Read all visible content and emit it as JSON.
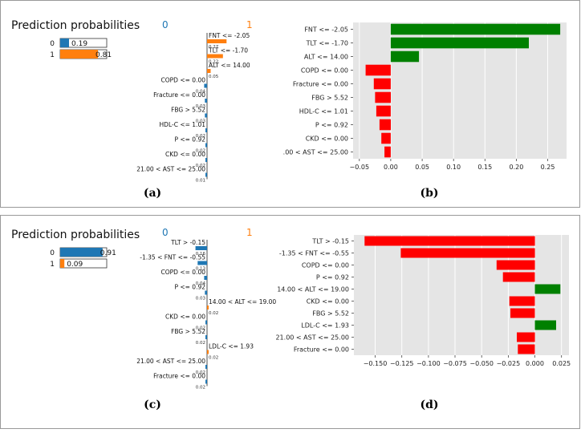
{
  "colors": {
    "blue": "#1f77b4",
    "orange": "#ff7f0e",
    "green": "#008000",
    "red": "#ff0000",
    "plot_bg": "#e5e5e5",
    "grid": "#ffffff"
  },
  "panel_labels": [
    "(a)",
    "(b)",
    "(c)",
    "(d)"
  ],
  "chart_data": [
    {
      "panel": "a",
      "type": "bar",
      "title": "Prediction probabilities",
      "class_labels": [
        "0",
        "1"
      ],
      "values": [
        0.19,
        0.81
      ],
      "value_labels": [
        "0.19",
        "0.81"
      ]
    },
    {
      "panel": "a",
      "type": "bar",
      "orientation": "horizontal",
      "header_left": "0",
      "header_right": "1",
      "features": [
        {
          "label": "FNT <= -2.05",
          "weight": 0.27,
          "weight_label": "0.27",
          "side": "1"
        },
        {
          "label": "TLT <= -1.70",
          "weight": 0.22,
          "weight_label": "0.22",
          "side": "1"
        },
        {
          "label": "ALT <= 14.00",
          "weight": 0.05,
          "weight_label": "0.05",
          "side": "1"
        },
        {
          "label": "COPD <= 0.00",
          "weight": 0.04,
          "weight_label": "0.04",
          "side": "0"
        },
        {
          "label": "Fracture <= 0.00",
          "weight": 0.03,
          "weight_label": "0.03",
          "side": "0"
        },
        {
          "label": "FBG > 5.52",
          "weight": 0.03,
          "weight_label": "0.03",
          "side": "0"
        },
        {
          "label": "HDL-C <= 1.01",
          "weight": 0.02,
          "weight_label": "0.02",
          "side": "0"
        },
        {
          "label": "P <= 0.92",
          "weight": 0.02,
          "weight_label": "0.02",
          "side": "0"
        },
        {
          "label": "CKD <= 0.00",
          "weight": 0.02,
          "weight_label": "0.02",
          "side": "0"
        },
        {
          "label": "21.00 < AST <= 25.00",
          "weight": 0.01,
          "weight_label": "0.01",
          "side": "0"
        }
      ]
    },
    {
      "panel": "b",
      "type": "bar",
      "orientation": "horizontal",
      "categories": [
        "FNT <= -2.05",
        "TLT <= -1.70",
        "ALT <= 14.00",
        "COPD <= 0.00",
        "Fracture <= 0.00",
        "FBG > 5.52",
        "HDL-C <= 1.01",
        "P <= 0.92",
        "CKD <= 0.00",
        ".00 < AST <= 25.00"
      ],
      "values": [
        0.27,
        0.22,
        0.045,
        -0.04,
        -0.027,
        -0.025,
        -0.023,
        -0.018,
        -0.015,
        -0.01
      ],
      "xlim": [
        -0.06,
        0.28
      ],
      "xticks": [
        -0.05,
        0.0,
        0.05,
        0.1,
        0.15,
        0.2,
        0.25
      ],
      "xtick_labels": [
        "−0.05",
        "0.00",
        "0.05",
        "0.10",
        "0.15",
        "0.20",
        "0.25"
      ],
      "grid": true
    },
    {
      "panel": "c",
      "type": "bar",
      "title": "Prediction probabilities",
      "class_labels": [
        "0",
        "1"
      ],
      "values": [
        0.91,
        0.09
      ],
      "value_labels": [
        "0.91",
        "0.09"
      ]
    },
    {
      "panel": "c",
      "type": "bar",
      "orientation": "horizontal",
      "header_left": "0",
      "header_right": "1",
      "features": [
        {
          "label": "TLT > -0.15",
          "weight": 0.16,
          "weight_label": "0.16",
          "side": "0"
        },
        {
          "label": "-1.35 < FNT <= -0.55",
          "weight": 0.13,
          "weight_label": "0.13",
          "side": "0"
        },
        {
          "label": "COPD <= 0.00",
          "weight": 0.04,
          "weight_label": "0.04",
          "side": "0"
        },
        {
          "label": "P <= 0.92",
          "weight": 0.03,
          "weight_label": "0.03",
          "side": "0"
        },
        {
          "label": "14.00 < ALT <= 19.00",
          "weight": 0.02,
          "weight_label": "0.02",
          "side": "1"
        },
        {
          "label": "CKD <= 0.00",
          "weight": 0.02,
          "weight_label": "0.02",
          "side": "0"
        },
        {
          "label": "FBG > 5.52",
          "weight": 0.02,
          "weight_label": "0.02",
          "side": "0"
        },
        {
          "label": "LDL-C <= 1.93",
          "weight": 0.02,
          "weight_label": "0.02",
          "side": "1"
        },
        {
          "label": "21.00 < AST <= 25.00",
          "weight": 0.02,
          "weight_label": "0.02",
          "side": "0"
        },
        {
          "label": "Fracture <= 0.00",
          "weight": 0.02,
          "weight_label": "0.02",
          "side": "0"
        }
      ]
    },
    {
      "panel": "d",
      "type": "bar",
      "orientation": "horizontal",
      "categories": [
        "TLT > -0.15",
        "-1.35 < FNT <= -0.55",
        "COPD <= 0.00",
        "P <= 0.92",
        "14.00 < ALT <= 19.00",
        "CKD <= 0.00",
        "FBG > 5.52",
        "LDL-C <= 1.93",
        "21.00 < AST <= 25.00",
        "Fracture <= 0.00"
      ],
      "values": [
        -0.16,
        -0.126,
        -0.036,
        -0.03,
        0.024,
        -0.024,
        -0.023,
        0.02,
        -0.017,
        -0.016
      ],
      "xlim": [
        -0.17,
        0.032
      ],
      "xticks": [
        -0.15,
        -0.125,
        -0.1,
        -0.075,
        -0.05,
        -0.025,
        0.0,
        0.025
      ],
      "xtick_labels": [
        "−0.150",
        "−0.125",
        "−0.100",
        "−0.075",
        "−0.050",
        "−0.025",
        "0.000",
        "0.025"
      ],
      "grid": true
    }
  ]
}
